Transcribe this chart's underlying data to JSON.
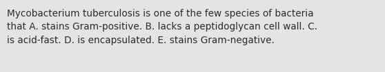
{
  "text": "Mycobacterium tuberculosis is one of the few species of bacteria\nthat A. stains Gram-positive. B. lacks a peptidoglycan cell wall. C.\nis acid-fast. D. is encapsulated. E. stains Gram-negative.",
  "background_color": "#e4e4e4",
  "text_color": "#2b2b2b",
  "font_size": 9.8,
  "font_family": "DejaVu Sans",
  "fig_width": 5.58,
  "fig_height": 1.05,
  "dpi": 100
}
